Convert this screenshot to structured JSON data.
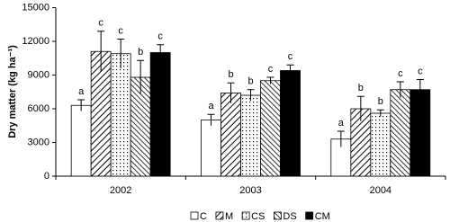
{
  "chart_data": {
    "type": "bar",
    "y_label": "Dry matter (kg ha⁻¹)",
    "categories": [
      "2002",
      "2003",
      "2004"
    ],
    "ylim": [
      0,
      15000
    ],
    "yticks": [
      0,
      3000,
      6000,
      9000,
      12000,
      15000
    ],
    "series": [
      {
        "name": "C",
        "color": "#ffffff",
        "pattern": "none",
        "values": [
          6300,
          5000,
          3300
        ],
        "errors": [
          500,
          500,
          700
        ],
        "letters": [
          "a",
          "a",
          "a"
        ]
      },
      {
        "name": "M",
        "color": "#000000",
        "pattern": "diagonal",
        "values": [
          11100,
          7400,
          6000
        ],
        "errors": [
          1800,
          900,
          1100
        ],
        "letters": [
          "c",
          "b",
          "b"
        ]
      },
      {
        "name": "CS",
        "color": "#000000",
        "pattern": "dots",
        "values": [
          10900,
          7200,
          5600
        ],
        "errors": [
          1300,
          500,
          300
        ],
        "letters": [
          "c",
          "b",
          "b"
        ]
      },
      {
        "name": "DS",
        "color": "#000000",
        "pattern": "crosshatch",
        "values": [
          8800,
          8500,
          7700
        ],
        "errors": [
          1500,
          300,
          700
        ],
        "letters": [
          "b",
          "c",
          "c"
        ]
      },
      {
        "name": "CM",
        "color": "#000000",
        "pattern": "solid",
        "values": [
          11000,
          9400,
          7700
        ],
        "errors": [
          700,
          500,
          900
        ],
        "letters": [
          "c",
          "c",
          "c"
        ]
      }
    ]
  }
}
